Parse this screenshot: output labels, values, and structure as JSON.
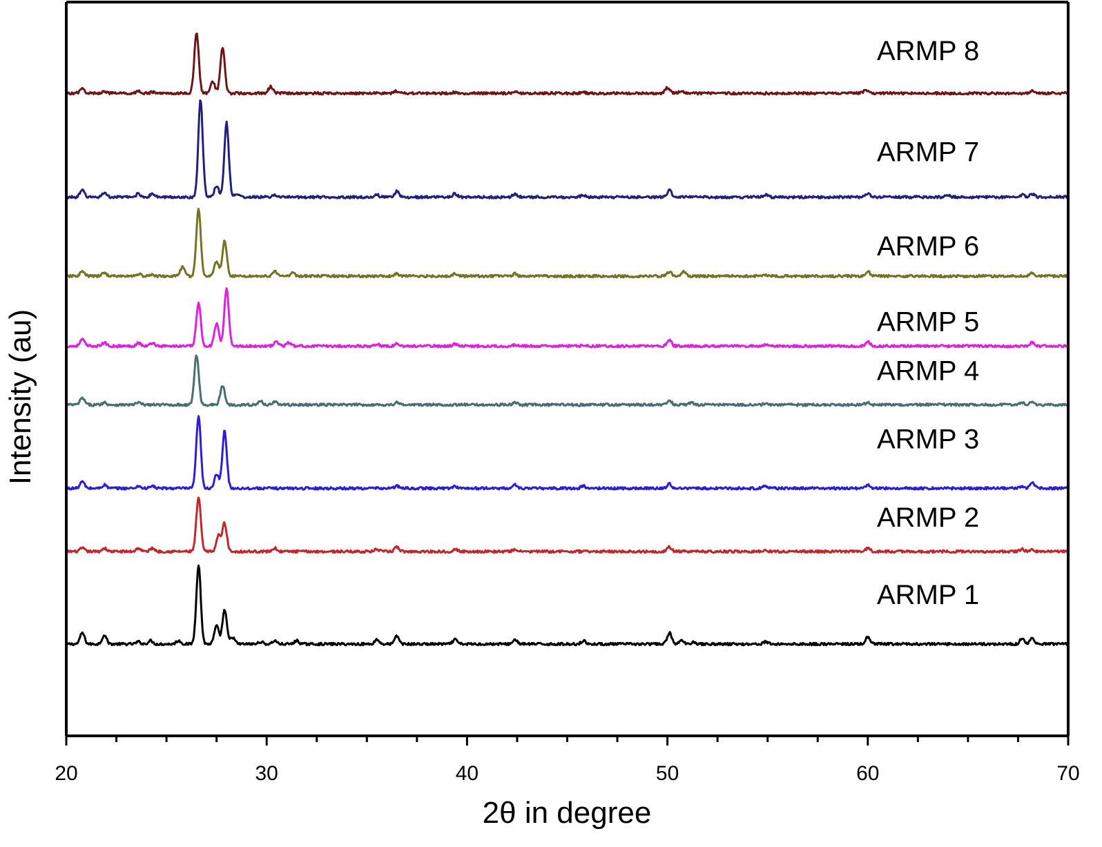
{
  "chart_data": {
    "type": "line",
    "title": "",
    "xlabel": "2θ in degree",
    "ylabel": "Intensity (au)",
    "xlim": [
      20,
      70
    ],
    "xticks": [
      20,
      30,
      40,
      50,
      60,
      70
    ],
    "yticks": "none",
    "legend": "labels placed above each trace on the right",
    "series": [
      {
        "name": "ARMP 1",
        "color": "#000000",
        "baseline": 0.0,
        "peaks": [
          [
            20.8,
            0.1
          ],
          [
            21.9,
            0.08
          ],
          [
            23.6,
            0.02
          ],
          [
            24.2,
            0.03
          ],
          [
            25.6,
            0.03
          ],
          [
            26.6,
            0.7
          ],
          [
            27.5,
            0.16
          ],
          [
            27.9,
            0.3
          ],
          [
            28.3,
            0.06
          ],
          [
            29.7,
            0.02
          ],
          [
            30.4,
            0.03
          ],
          [
            31.5,
            0.03
          ],
          [
            35.5,
            0.04
          ],
          [
            36.5,
            0.07
          ],
          [
            39.4,
            0.04
          ],
          [
            42.4,
            0.04
          ],
          [
            45.8,
            0.03
          ],
          [
            50.1,
            0.1
          ],
          [
            50.7,
            0.03
          ],
          [
            51.3,
            0.02
          ],
          [
            54.9,
            0.02
          ],
          [
            60.0,
            0.06
          ],
          [
            67.7,
            0.05
          ],
          [
            68.2,
            0.05
          ]
        ]
      },
      {
        "name": "ARMP 2",
        "color": "#c1272d",
        "baseline": 0.82,
        "peaks": [
          [
            20.8,
            0.03
          ],
          [
            21.9,
            0.03
          ],
          [
            23.6,
            0.03
          ],
          [
            24.3,
            0.03
          ],
          [
            26.6,
            0.48
          ],
          [
            27.6,
            0.14
          ],
          [
            27.9,
            0.25
          ],
          [
            30.4,
            0.03
          ],
          [
            35.5,
            0.02
          ],
          [
            36.5,
            0.04
          ],
          [
            39.4,
            0.02
          ],
          [
            42.4,
            0.02
          ],
          [
            50.1,
            0.04
          ],
          [
            54.9,
            0.01
          ],
          [
            60.0,
            0.03
          ],
          [
            67.7,
            0.02
          ],
          [
            68.2,
            0.02
          ]
        ]
      },
      {
        "name": "ARMP 3",
        "color": "#2b1ed9",
        "baseline": 1.38,
        "peaks": [
          [
            20.8,
            0.06
          ],
          [
            21.9,
            0.03
          ],
          [
            23.6,
            0.02
          ],
          [
            24.3,
            0.02
          ],
          [
            26.6,
            0.64
          ],
          [
            27.5,
            0.12
          ],
          [
            27.9,
            0.51
          ],
          [
            36.5,
            0.02
          ],
          [
            39.4,
            0.02
          ],
          [
            42.4,
            0.03
          ],
          [
            45.8,
            0.02
          ],
          [
            50.1,
            0.04
          ],
          [
            54.9,
            0.02
          ],
          [
            60.0,
            0.03
          ],
          [
            67.7,
            0.02
          ],
          [
            68.2,
            0.05
          ]
        ]
      },
      {
        "name": "ARMP 4",
        "color": "#486e6e",
        "baseline": 2.12,
        "peaks": [
          [
            20.8,
            0.06
          ],
          [
            21.9,
            0.02
          ],
          [
            23.6,
            0.02
          ],
          [
            26.5,
            0.44
          ],
          [
            27.8,
            0.17
          ],
          [
            29.7,
            0.03
          ],
          [
            30.4,
            0.03
          ],
          [
            36.5,
            0.02
          ],
          [
            42.4,
            0.02
          ],
          [
            50.1,
            0.04
          ],
          [
            51.2,
            0.02
          ],
          [
            54.9,
            0.01
          ],
          [
            60.0,
            0.02
          ],
          [
            67.7,
            0.02
          ],
          [
            68.2,
            0.03
          ]
        ]
      },
      {
        "name": "ARMP 5",
        "color": "#e020e0",
        "baseline": 2.64,
        "peaks": [
          [
            20.8,
            0.06
          ],
          [
            21.9,
            0.03
          ],
          [
            23.6,
            0.03
          ],
          [
            24.3,
            0.03
          ],
          [
            26.6,
            0.38
          ],
          [
            27.5,
            0.2
          ],
          [
            28.0,
            0.51
          ],
          [
            30.5,
            0.04
          ],
          [
            31.1,
            0.03
          ],
          [
            35.5,
            0.02
          ],
          [
            36.5,
            0.02
          ],
          [
            39.4,
            0.02
          ],
          [
            42.4,
            0.01
          ],
          [
            45.8,
            0.01
          ],
          [
            50.1,
            0.05
          ],
          [
            54.9,
            0.01
          ],
          [
            60.0,
            0.04
          ],
          [
            68.2,
            0.03
          ]
        ]
      },
      {
        "name": "ARMP 6",
        "color": "#737323",
        "baseline": 3.26,
        "peaks": [
          [
            20.8,
            0.04
          ],
          [
            21.9,
            0.03
          ],
          [
            23.6,
            0.02
          ],
          [
            24.3,
            0.01
          ],
          [
            25.8,
            0.08
          ],
          [
            26.6,
            0.59
          ],
          [
            27.5,
            0.13
          ],
          [
            27.9,
            0.31
          ],
          [
            30.4,
            0.04
          ],
          [
            31.3,
            0.03
          ],
          [
            36.5,
            0.02
          ],
          [
            39.4,
            0.02
          ],
          [
            42.4,
            0.02
          ],
          [
            50.1,
            0.04
          ],
          [
            50.8,
            0.04
          ],
          [
            54.9,
            0.01
          ],
          [
            60.0,
            0.04
          ],
          [
            68.2,
            0.03
          ]
        ]
      },
      {
        "name": "ARMP 7",
        "color": "#22207a",
        "baseline": 3.96,
        "peaks": [
          [
            20.8,
            0.06
          ],
          [
            21.9,
            0.04
          ],
          [
            23.6,
            0.03
          ],
          [
            24.3,
            0.03
          ],
          [
            26.7,
            0.86
          ],
          [
            27.5,
            0.1
          ],
          [
            28.0,
            0.66
          ],
          [
            28.5,
            0.03
          ],
          [
            30.4,
            0.02
          ],
          [
            35.5,
            0.02
          ],
          [
            36.5,
            0.05
          ],
          [
            39.4,
            0.03
          ],
          [
            42.4,
            0.03
          ],
          [
            45.8,
            0.02
          ],
          [
            50.1,
            0.06
          ],
          [
            54.9,
            0.02
          ],
          [
            60.0,
            0.03
          ],
          [
            64.0,
            0.02
          ],
          [
            67.7,
            0.02
          ],
          [
            68.2,
            0.03
          ]
        ]
      },
      {
        "name": "ARMP 8",
        "color": "#6e1414",
        "baseline": 4.88,
        "peaks": [
          [
            20.8,
            0.04
          ],
          [
            21.9,
            0.02
          ],
          [
            23.6,
            0.02
          ],
          [
            24.3,
            0.01
          ],
          [
            26.5,
            0.54
          ],
          [
            27.3,
            0.11
          ],
          [
            27.8,
            0.4
          ],
          [
            30.2,
            0.06
          ],
          [
            36.5,
            0.02
          ],
          [
            39.4,
            0.01
          ],
          [
            42.4,
            0.02
          ],
          [
            45.8,
            0.01
          ],
          [
            50.0,
            0.05
          ],
          [
            50.7,
            0.02
          ],
          [
            59.9,
            0.03
          ],
          [
            68.2,
            0.02
          ]
        ]
      }
    ]
  }
}
